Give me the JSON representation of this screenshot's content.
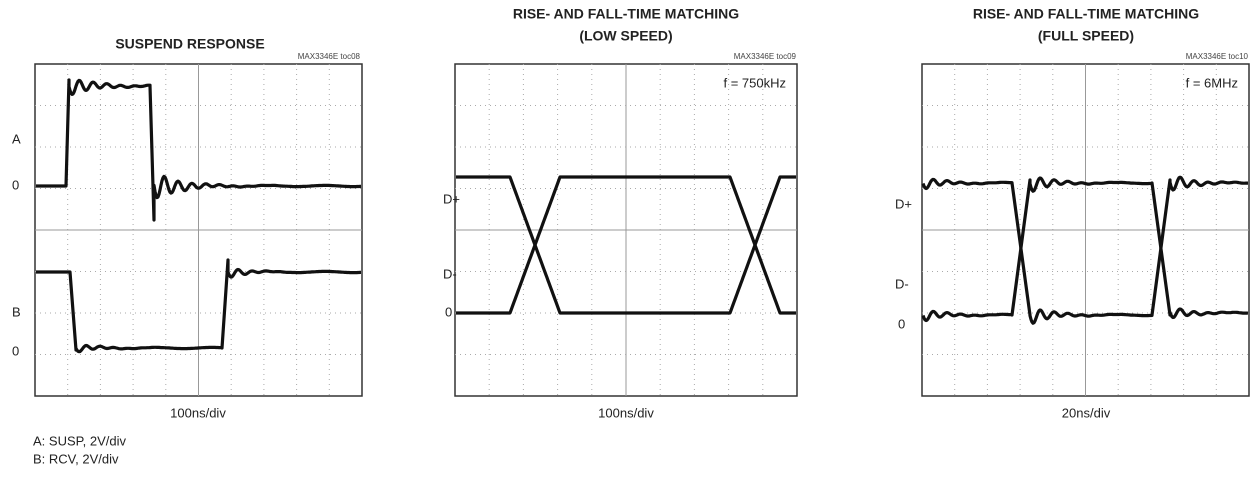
{
  "panels": [
    {
      "title": [
        "SUSPEND RESPONSE"
      ],
      "id": "MAX3346E toc08",
      "x_label": "100ns/div",
      "trace_labels": [
        "A",
        "0",
        "B",
        "0"
      ],
      "notes": [
        "A: SUSP, 2V/div",
        "B: RCV, 2V/div"
      ]
    },
    {
      "title": [
        "RISE- AND FALL-TIME MATCHING",
        "(LOW SPEED)"
      ],
      "id": "MAX3346E toc09",
      "annotation": "f = 750kHz",
      "x_label": "100ns/div",
      "trace_labels": [
        "D+",
        "D-",
        "0"
      ]
    },
    {
      "title": [
        "RISE- AND FALL-TIME MATCHING",
        "(FULL SPEED)"
      ],
      "id": "MAX3346E toc10",
      "annotation": "f = 6MHz",
      "x_label": "20ns/div",
      "trace_labels": [
        "D+",
        "D-",
        "0"
      ]
    }
  ]
}
